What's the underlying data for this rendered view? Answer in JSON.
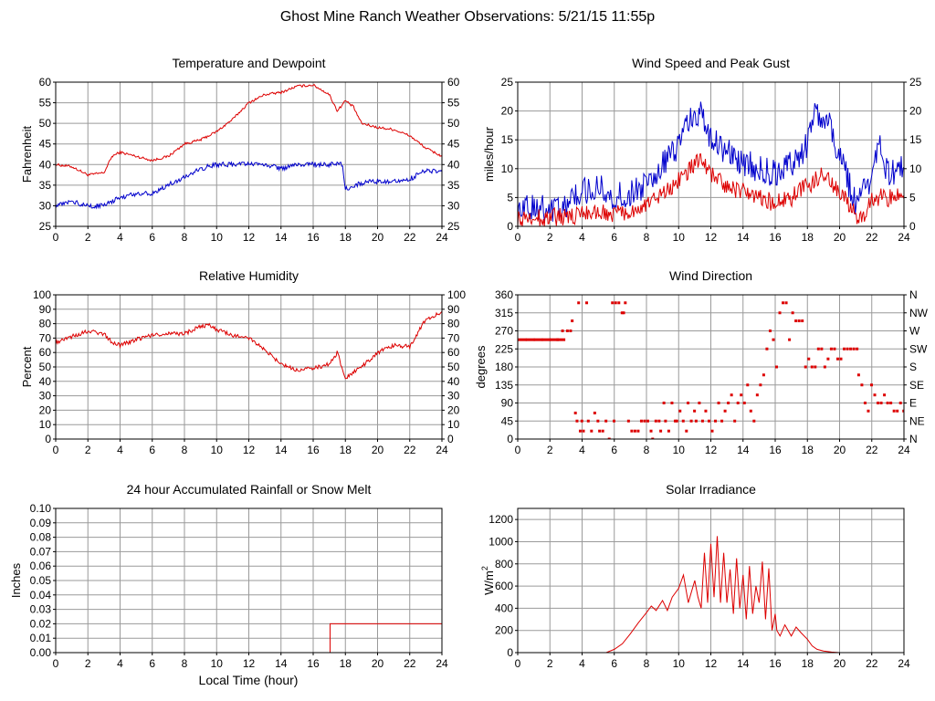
{
  "page": {
    "title": "Ghost Mine Ranch Weather Observations: 5/21/15 11:55p",
    "x_axis_label": "Local Time (hour)"
  },
  "colors": {
    "red": "#dd0000",
    "blue": "#0000cc",
    "grid": "#9a9a9a",
    "axis": "#000000"
  },
  "chart_data": [
    {
      "id": "temp",
      "type": "line",
      "title": "Temperature and Dewpoint",
      "ylabel": "Fahrenheit",
      "xlim": [
        0,
        24
      ],
      "ylim": [
        25,
        60
      ],
      "xticks": [
        0,
        2,
        4,
        6,
        8,
        10,
        12,
        14,
        16,
        18,
        20,
        22,
        24
      ],
      "yticks": [
        25,
        30,
        35,
        40,
        45,
        50,
        55,
        60
      ],
      "right_ticks": [
        "25",
        "30",
        "35",
        "40",
        "45",
        "50",
        "55",
        "60"
      ],
      "series": [
        {
          "color": "#dd0000",
          "noise": 0.3,
          "x": [
            0,
            1,
            2,
            3,
            3.5,
            4,
            5,
            6,
            7,
            8,
            9,
            10,
            11,
            12,
            13,
            14,
            15,
            16,
            17,
            17.5,
            18,
            18.5,
            19,
            20,
            21,
            22,
            23,
            24
          ],
          "y": [
            40,
            39.5,
            37.5,
            38,
            42,
            43,
            42,
            41,
            42,
            45,
            46,
            48,
            51,
            55,
            57,
            57.5,
            59,
            59.3,
            57,
            53,
            55.5,
            54,
            50,
            49,
            48.5,
            47,
            44,
            42
          ]
        },
        {
          "color": "#0000cc",
          "noise": 0.6,
          "x": [
            0,
            1,
            2,
            3,
            3.5,
            4,
            5,
            6,
            7,
            8,
            9,
            10,
            11,
            12,
            13,
            14,
            15,
            16,
            17,
            17.8,
            18,
            19,
            20,
            21,
            22,
            23,
            24
          ],
          "y": [
            30,
            31,
            30,
            30,
            31,
            32,
            33,
            33,
            35,
            37,
            39,
            40,
            40,
            40,
            40,
            39,
            40,
            40,
            40,
            40,
            34,
            35.5,
            36,
            36,
            36.5,
            38.5,
            38.5
          ]
        }
      ]
    },
    {
      "id": "wind",
      "type": "line",
      "title": "Wind Speed and Peak Gust",
      "ylabel": "miles/hour",
      "xlim": [
        0,
        24
      ],
      "ylim": [
        0,
        25
      ],
      "xticks": [
        0,
        2,
        4,
        6,
        8,
        10,
        12,
        14,
        16,
        18,
        20,
        22,
        24
      ],
      "yticks": [
        0,
        5,
        10,
        15,
        20,
        25
      ],
      "right_ticks": [
        "0",
        "5",
        "10",
        "15",
        "20",
        "25"
      ],
      "series": [
        {
          "color": "#0000cc",
          "noise": 2.5,
          "x": [
            0,
            1,
            2,
            3,
            4,
            5,
            6,
            7,
            8,
            9,
            10,
            10.5,
            11,
            11.5,
            12,
            13,
            14,
            15,
            16,
            17,
            18,
            18.5,
            19,
            19.5,
            20,
            20.5,
            21,
            22,
            22.5,
            23,
            24
          ],
          "y": [
            3,
            3,
            3,
            4,
            6,
            7,
            5,
            6,
            7,
            11,
            14,
            17,
            20,
            19,
            15,
            13,
            11,
            10,
            9,
            11,
            14,
            20,
            18,
            17,
            12,
            8,
            4,
            8,
            15,
            9,
            10
          ]
        },
        {
          "color": "#dd0000",
          "noise": 1.6,
          "x": [
            0,
            2,
            4,
            5,
            6,
            7,
            8,
            9,
            10,
            11,
            11.5,
            12,
            13,
            14,
            15,
            16,
            17,
            18,
            19,
            20,
            21,
            21.5,
            22,
            23,
            24
          ],
          "y": [
            1.5,
            1.5,
            2,
            2.5,
            2,
            3,
            3.5,
            6,
            8,
            11,
            11,
            9,
            7,
            6,
            5,
            4,
            5,
            7,
            9,
            6,
            2,
            1,
            5,
            5,
            5
          ]
        }
      ]
    },
    {
      "id": "rh",
      "type": "line",
      "title": "Relative Humidity",
      "ylabel": "Percent",
      "xlim": [
        0,
        24
      ],
      "ylim": [
        0,
        100
      ],
      "xticks": [
        0,
        2,
        4,
        6,
        8,
        10,
        12,
        14,
        16,
        18,
        20,
        22,
        24
      ],
      "yticks": [
        0,
        10,
        20,
        30,
        40,
        50,
        60,
        70,
        80,
        90,
        100
      ],
      "right_ticks": [
        "0",
        "10",
        "20",
        "30",
        "40",
        "50",
        "60",
        "70",
        "80",
        "90",
        "100"
      ],
      "series": [
        {
          "color": "#dd0000",
          "noise": 1.4,
          "x": [
            0,
            1,
            2,
            3,
            3.5,
            4,
            5,
            6,
            7,
            8,
            9,
            9.5,
            10,
            11,
            12,
            13,
            14,
            15,
            16,
            17,
            17.5,
            18,
            19,
            20,
            21,
            22,
            23,
            24
          ],
          "y": [
            67,
            71,
            75,
            73,
            67,
            65,
            69,
            72,
            73,
            73,
            78,
            79,
            76,
            72,
            70,
            62,
            52,
            48,
            49,
            52,
            60,
            42,
            50,
            60,
            65,
            64,
            83,
            88
          ]
        }
      ]
    },
    {
      "id": "dir",
      "type": "scatter",
      "title": "Wind Direction",
      "ylabel": "degrees",
      "xlim": [
        0,
        24
      ],
      "ylim": [
        0,
        360
      ],
      "xticks": [
        0,
        2,
        4,
        6,
        8,
        10,
        12,
        14,
        16,
        18,
        20,
        22,
        24
      ],
      "yticks": [
        0,
        45,
        90,
        135,
        180,
        225,
        270,
        315,
        360
      ],
      "right_ticks": [
        "N",
        "NE",
        "E",
        "SE",
        "S",
        "SW",
        "W",
        "NW",
        "N"
      ],
      "series": [
        {
          "color": "#dd0000",
          "x": [
            0,
            0.5,
            1,
            1.5,
            2,
            2.4,
            2.7,
            3,
            3.2,
            3.3,
            3.5,
            3.6,
            3.7,
            3.8,
            3.9,
            4.0,
            4.2,
            4.3,
            4.5,
            4.7,
            4.9,
            5.0,
            5.2,
            5.4,
            5.6,
            5.8,
            5.9,
            6.0,
            6.2,
            6.4,
            6.5,
            6.6,
            6.8,
            7.0,
            7.2,
            7.4,
            7.6,
            7.8,
            8.0,
            8.2,
            8.3,
            8.5,
            8.7,
            8.8,
            9.0,
            9.1,
            9.3,
            9.5,
            9.7,
            9.8,
            10.0,
            10.2,
            10.4,
            10.5,
            10.7,
            10.9,
            11.0,
            11.2,
            11.4,
            11.6,
            11.8,
            12.0,
            12.2,
            12.4,
            12.6,
            12.8,
            13.0,
            13.2,
            13.4,
            13.6,
            13.8,
            14.0,
            14.2,
            14.4,
            14.6,
            14.8,
            15.0,
            15.2,
            15.4,
            15.6,
            15.8,
            16.0,
            16.2,
            16.4,
            16.6,
            16.8,
            17.0,
            17.2,
            17.4,
            17.6,
            17.8,
            18.0,
            18.2,
            18.4,
            18.6,
            18.8,
            19.0,
            19.2,
            19.4,
            19.6,
            19.8,
            20.0,
            20.2,
            20.4,
            20.6,
            20.8,
            21.0,
            21.1,
            21.3,
            21.5,
            21.7,
            21.9,
            22.1,
            22.3,
            22.5,
            22.7,
            22.9,
            23.1,
            23.3,
            23.5,
            23.7,
            23.9
          ],
          "y": [
            248,
            248,
            248,
            248,
            248,
            248,
            270,
            270,
            270,
            295,
            65,
            45,
            340,
            20,
            45,
            20,
            340,
            45,
            20,
            65,
            45,
            20,
            20,
            45,
            0,
            340,
            45,
            340,
            340,
            315,
            315,
            340,
            45,
            20,
            20,
            20,
            45,
            45,
            45,
            20,
            0,
            45,
            45,
            20,
            90,
            45,
            20,
            90,
            45,
            45,
            70,
            45,
            20,
            90,
            45,
            70,
            45,
            90,
            45,
            70,
            45,
            20,
            45,
            90,
            45,
            70,
            90,
            110,
            45,
            90,
            110,
            90,
            135,
            70,
            45,
            110,
            135,
            160,
            225,
            270,
            248,
            180,
            315,
            340,
            340,
            248,
            315,
            295,
            295,
            295,
            180,
            200,
            180,
            180,
            225,
            225,
            180,
            200,
            225,
            225,
            200,
            200,
            225,
            225,
            225,
            225,
            225,
            160,
            135,
            90,
            70,
            135,
            110,
            90,
            90,
            110,
            90,
            90,
            70,
            70,
            90,
            70
          ]
        }
      ]
    },
    {
      "id": "rain",
      "type": "line",
      "title": "24 hour Accumulated Rainfall or Snow Melt",
      "ylabel": "Inches",
      "xlim": [
        0,
        24
      ],
      "ylim": [
        0,
        0.1
      ],
      "xticks": [
        0,
        2,
        4,
        6,
        8,
        10,
        12,
        14,
        16,
        18,
        20,
        22,
        24
      ],
      "yticks": [
        0,
        0.01,
        0.02,
        0.03,
        0.04,
        0.05,
        0.06,
        0.07,
        0.08,
        0.09,
        0.1
      ],
      "ytick_labels": [
        "0.00",
        "0.01",
        "0.02",
        "0.03",
        "0.04",
        "0.05",
        "0.06",
        "0.07",
        "0.08",
        "0.09",
        "0.10"
      ],
      "series": [
        {
          "color": "#dd0000",
          "noise": 0,
          "x": [
            0,
            17.05,
            17.05,
            24
          ],
          "y": [
            0,
            0,
            0.02,
            0.02
          ]
        }
      ]
    },
    {
      "id": "solar",
      "type": "line",
      "title": "Solar Irradiance",
      "ylabel": "W/m",
      "ylabel_sup": "2",
      "xlim": [
        0,
        24
      ],
      "ylim": [
        0,
        1300
      ],
      "xticks": [
        0,
        2,
        4,
        6,
        8,
        10,
        12,
        14,
        16,
        18,
        20,
        22,
        24
      ],
      "yticks": [
        0,
        200,
        400,
        600,
        800,
        1000,
        1200
      ],
      "series": [
        {
          "color": "#dd0000",
          "noise": 0,
          "x": [
            0,
            5.5,
            6,
            6.5,
            7,
            7.5,
            8,
            8.3,
            8.6,
            9,
            9.3,
            9.6,
            10,
            10.3,
            10.6,
            11,
            11.2,
            11.4,
            11.6,
            11.8,
            12,
            12.2,
            12.4,
            12.6,
            12.8,
            13,
            13.2,
            13.4,
            13.6,
            13.8,
            14,
            14.2,
            14.4,
            14.6,
            14.8,
            15,
            15.2,
            15.4,
            15.6,
            15.8,
            16,
            16.1,
            16.3,
            16.6,
            17,
            17.3,
            17.6,
            18,
            18.3,
            18.6,
            19,
            19.5,
            20,
            24
          ],
          "y": [
            0,
            0,
            30,
            80,
            170,
            270,
            360,
            420,
            380,
            470,
            380,
            500,
            580,
            700,
            450,
            650,
            500,
            400,
            900,
            450,
            980,
            500,
            1050,
            450,
            900,
            450,
            750,
            350,
            850,
            400,
            700,
            300,
            780,
            350,
            600,
            450,
            820,
            300,
            760,
            200,
            350,
            200,
            150,
            250,
            150,
            230,
            180,
            120,
            60,
            30,
            15,
            5,
            0,
            0
          ]
        }
      ]
    }
  ]
}
